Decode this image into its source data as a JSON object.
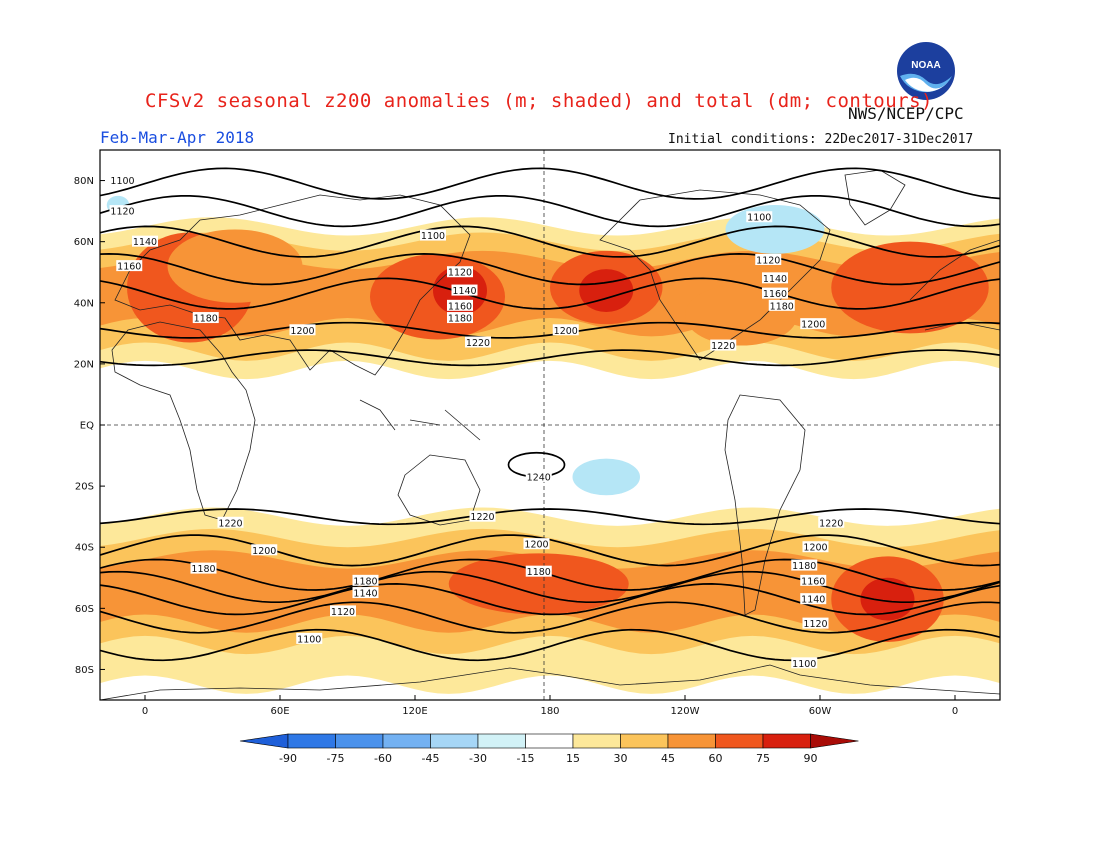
{
  "header": {
    "title": "CFSv2 seasonal z200 anomalies (m; shaded) and total (dm; contours)",
    "period": "Feb-Mar-Apr 2018",
    "agency": "NWS/NCEP/CPC",
    "initial_conditions": "Initial conditions: 22Dec2017-31Dec2017",
    "logo_text": "NOAA"
  },
  "map": {
    "lat_ticks": [
      "80N",
      "60N",
      "40N",
      "20N",
      "EQ",
      "20S",
      "40S",
      "60S",
      "80S"
    ],
    "lon_ticks": [
      "0",
      "60E",
      "120E",
      "180",
      "120W",
      "60W",
      "0"
    ],
    "contours": [
      {
        "label": "1100",
        "lat": 79
      },
      {
        "label": "1120",
        "lat": 70
      },
      {
        "label": "1140",
        "lat": 60
      },
      {
        "label": "1160",
        "lat": 51
      },
      {
        "label": "1180",
        "lat": 43
      },
      {
        "label": "1200",
        "lat": 31
      },
      {
        "label": "1220",
        "lat": 22
      },
      {
        "label": "1240",
        "lat": -13
      },
      {
        "label": "1220",
        "lat": -30
      },
      {
        "label": "1200",
        "lat": -41
      },
      {
        "label": "1180",
        "lat": -49
      },
      {
        "label": "1160",
        "lat": -53
      },
      {
        "label": "1140",
        "lat": -57
      },
      {
        "label": "1120",
        "lat": -63
      },
      {
        "label": "1100",
        "lat": -72
      }
    ],
    "contour_labels": [
      {
        "text": "1100",
        "lon": -10,
        "lat": 80
      },
      {
        "text": "1120",
        "lon": -10,
        "lat": 70
      },
      {
        "text": "1140",
        "lon": 0,
        "lat": 60
      },
      {
        "text": "1160",
        "lon": -7,
        "lat": 52
      },
      {
        "text": "1180",
        "lon": 27,
        "lat": 35
      },
      {
        "text": "1200",
        "lon": 70,
        "lat": 31
      },
      {
        "text": "1220",
        "lon": 148,
        "lat": 27
      },
      {
        "text": "1100",
        "lon": 128,
        "lat": 62
      },
      {
        "text": "1120",
        "lon": 140,
        "lat": 50
      },
      {
        "text": "1140",
        "lon": 142,
        "lat": 44
      },
      {
        "text": "1160",
        "lon": 140,
        "lat": 39
      },
      {
        "text": "1180",
        "lon": 140,
        "lat": 35
      },
      {
        "text": "1200",
        "lon": 187,
        "lat": 31
      },
      {
        "text": "1100",
        "lon": 273,
        "lat": 68
      },
      {
        "text": "1120",
        "lon": 277,
        "lat": 54
      },
      {
        "text": "1140",
        "lon": 280,
        "lat": 48
      },
      {
        "text": "1160",
        "lon": 280,
        "lat": 43
      },
      {
        "text": "1180",
        "lon": 283,
        "lat": 39
      },
      {
        "text": "1200",
        "lon": 297,
        "lat": 33
      },
      {
        "text": "1220",
        "lon": 257,
        "lat": 26
      },
      {
        "text": "1240",
        "lon": 175,
        "lat": -17
      },
      {
        "text": "1220",
        "lon": 38,
        "lat": -32
      },
      {
        "text": "1220",
        "lon": 150,
        "lat": -30
      },
      {
        "text": "1220",
        "lon": 305,
        "lat": -32
      },
      {
        "text": "1200",
        "lon": 53,
        "lat": -41
      },
      {
        "text": "1200",
        "lon": 174,
        "lat": -39
      },
      {
        "text": "1200",
        "lon": 298,
        "lat": -40
      },
      {
        "text": "1180",
        "lon": 26,
        "lat": -47
      },
      {
        "text": "1180",
        "lon": 98,
        "lat": -51
      },
      {
        "text": "1180",
        "lon": 175,
        "lat": -48
      },
      {
        "text": "1180",
        "lon": 293,
        "lat": -46
      },
      {
        "text": "1160",
        "lon": 297,
        "lat": -51
      },
      {
        "text": "1140",
        "lon": 98,
        "lat": -55
      },
      {
        "text": "1140",
        "lon": 297,
        "lat": -57
      },
      {
        "text": "1120",
        "lon": 88,
        "lat": -61
      },
      {
        "text": "1120",
        "lon": 298,
        "lat": -65
      },
      {
        "text": "1100",
        "lon": 73,
        "lat": -70
      },
      {
        "text": "1100",
        "lon": 293,
        "lat": -78
      }
    ],
    "anomaly_blobs": [
      {
        "lon": 20,
        "lat": 45,
        "rx": 28,
        "ry": 18,
        "level": 4
      },
      {
        "lon": 40,
        "lat": 52,
        "rx": 30,
        "ry": 12,
        "level": 3
      },
      {
        "lon": 130,
        "lat": 42,
        "rx": 30,
        "ry": 14,
        "level": 4
      },
      {
        "lon": 140,
        "lat": 44,
        "rx": 12,
        "ry": 8,
        "level": 5
      },
      {
        "lon": 205,
        "lat": 45,
        "rx": 25,
        "ry": 12,
        "level": 4
      },
      {
        "lon": 205,
        "lat": 44,
        "rx": 12,
        "ry": 7,
        "level": 5
      },
      {
        "lon": 265,
        "lat": 36,
        "rx": 25,
        "ry": 10,
        "level": 3
      },
      {
        "lon": 340,
        "lat": 45,
        "rx": 35,
        "ry": 15,
        "level": 4
      },
      {
        "lon": 45,
        "lat": -55,
        "rx": 40,
        "ry": 10,
        "level": 3
      },
      {
        "lon": 175,
        "lat": -52,
        "rx": 40,
        "ry": 10,
        "level": 4
      },
      {
        "lon": 330,
        "lat": -57,
        "rx": 25,
        "ry": 14,
        "level": 4
      },
      {
        "lon": 330,
        "lat": -57,
        "rx": 12,
        "ry": 7,
        "level": 5
      }
    ],
    "anomaly_bands": [
      {
        "lat_top": 65,
        "lat_bot": 18,
        "level": 1
      },
      {
        "lat_top": 60,
        "lat_bot": 24,
        "level": 2
      },
      {
        "lat_top": 54,
        "lat_bot": 32,
        "level": 3
      },
      {
        "lat_top": -30,
        "lat_bot": -85,
        "level": 1
      },
      {
        "lat_top": -37,
        "lat_bot": -72,
        "level": 2
      },
      {
        "lat_top": -44,
        "lat_bot": -65,
        "level": 3
      }
    ],
    "negative_blobs": [
      {
        "lon": 280,
        "lat": 64,
        "rx": 22,
        "ry": 8,
        "level": 1
      },
      {
        "lon": 205,
        "lat": -17,
        "rx": 15,
        "ry": 6,
        "level": 1
      },
      {
        "lon": -12,
        "lat": 72,
        "rx": 5,
        "ry": 3,
        "level": 1
      }
    ]
  },
  "colorbar": {
    "labels": [
      "-90",
      "-75",
      "-60",
      "-45",
      "-30",
      "-15",
      "15",
      "30",
      "45",
      "60",
      "75",
      "90"
    ],
    "colors": [
      "#1e5fd9",
      "#2f78e6",
      "#4b92ec",
      "#73b1f2",
      "#a6d6f6",
      "#d2f2f7",
      "#ffffff",
      "#fde89a",
      "#fbc45b",
      "#f79437",
      "#f0571e",
      "#d8200e",
      "#a90c07"
    ]
  },
  "anomaly_colors": [
    "#ffffff",
    "#fde89a",
    "#fbc45b",
    "#f79437",
    "#f0571e",
    "#d8200e",
    "#a90c07"
  ],
  "negative_colors": [
    "#ffffff",
    "#b5e6f6"
  ]
}
